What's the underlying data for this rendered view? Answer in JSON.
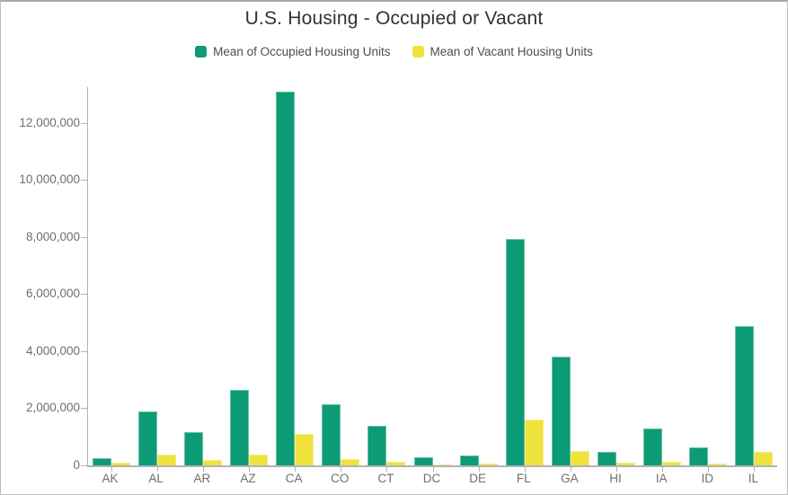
{
  "chart_data": {
    "type": "bar",
    "title": "U.S. Housing - Occupied or Vacant",
    "categories": [
      "AK",
      "AL",
      "AR",
      "AZ",
      "CA",
      "CO",
      "CT",
      "DC",
      "DE",
      "FL",
      "GA",
      "HI",
      "IA",
      "ID",
      "IL"
    ],
    "series": [
      {
        "name": "Mean of Occupied Housing Units",
        "color": "#0C9B75",
        "values": [
          250000,
          1880000,
          1160000,
          2630000,
          13100000,
          2130000,
          1370000,
          270000,
          360000,
          7920000,
          3800000,
          460000,
          1280000,
          640000,
          4870000
        ]
      },
      {
        "name": "Mean of Vacant Housing Units",
        "color": "#EFE23D",
        "values": [
          80000,
          390000,
          200000,
          390000,
          1090000,
          220000,
          130000,
          30000,
          70000,
          1600000,
          490000,
          90000,
          130000,
          70000,
          480000
        ]
      }
    ],
    "xlabel": "",
    "ylabel": "",
    "ylim": [
      0,
      13250000
    ],
    "y_ticks": [
      0,
      2000000,
      4000000,
      6000000,
      8000000,
      10000000,
      12000000
    ],
    "grid": false,
    "legend_position": "top"
  },
  "colors": {
    "occupied": "#0C9B75",
    "vacant": "#EFE23D",
    "axis_line": "#b2b2b2",
    "tick_text": "#6e6e6e",
    "title_text": "#323232",
    "legend_text": "#4d4d4d",
    "page_border": "#bdbdbd"
  }
}
